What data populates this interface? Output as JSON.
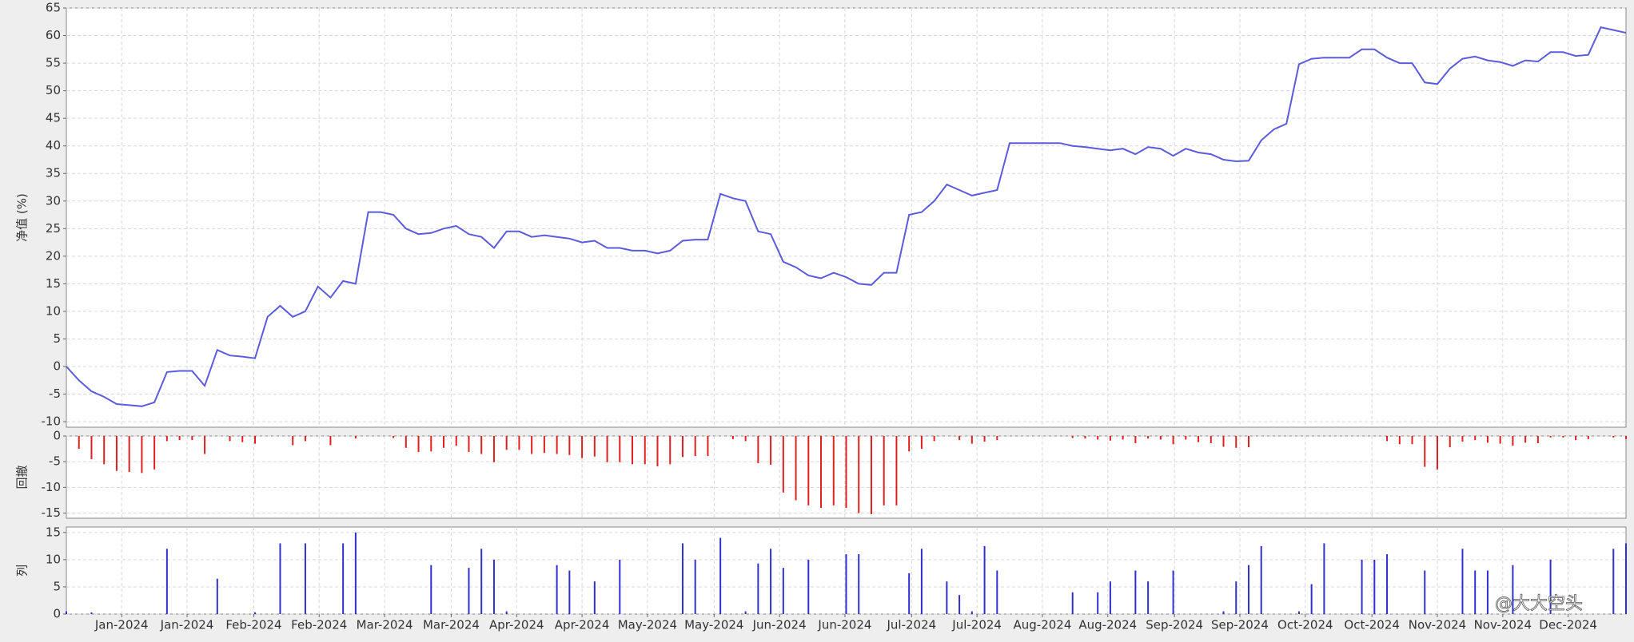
{
  "chart_data": [
    {
      "type": "line",
      "ylabel": "净值 (%)",
      "color": "#5b5bdc",
      "xlim": [
        0,
        124
      ],
      "ylim": [
        -11,
        65
      ],
      "yticks": [
        -10,
        -5,
        0,
        5,
        10,
        15,
        20,
        25,
        30,
        35,
        40,
        45,
        50,
        55,
        60,
        65
      ],
      "grid": true,
      "values": [
        0,
        -2.5,
        -4.5,
        -5.5,
        -6.8,
        -7,
        -7.2,
        -6.5,
        -1,
        -0.8,
        -0.8,
        -3.5,
        3,
        2,
        1.8,
        1.5,
        9,
        11,
        9,
        10,
        14.5,
        12.5,
        15.5,
        15,
        28,
        28,
        27.5,
        25,
        24,
        24.2,
        25,
        25.5,
        24,
        23.5,
        21.5,
        24.5,
        24.5,
        23.5,
        23.8,
        23.5,
        23.2,
        22.5,
        22.8,
        21.5,
        21.5,
        21,
        21,
        20.5,
        21,
        22.8,
        23,
        23,
        31.3,
        30.5,
        30,
        24.5,
        24,
        19,
        18,
        16.5,
        16,
        17,
        16.2,
        15,
        14.8,
        17,
        17,
        27.5,
        28,
        30,
        33,
        32,
        31,
        31.5,
        32,
        40.5,
        40.5,
        40.5,
        40.5,
        40.5,
        40,
        39.8,
        39.5,
        39.2,
        39.5,
        38.5,
        39.8,
        39.5,
        38.2,
        39.5,
        38.8,
        38.5,
        37.5,
        37.2,
        37.3,
        41,
        43,
        44,
        54.8,
        55.8,
        56,
        56,
        56,
        57.5,
        57.5,
        56,
        55,
        55,
        51.5,
        51.2,
        54,
        55.8,
        56.2,
        55.5,
        55.2,
        54.5,
        55.5,
        55.3,
        57,
        57,
        56.3,
        56.5,
        61.5,
        61,
        60.5
      ]
    },
    {
      "type": "bar",
      "ylabel": "回撤",
      "color": "#e02020",
      "xlim": [
        0,
        124
      ],
      "ylim": [
        -16,
        0
      ],
      "yticks": [
        0,
        -5,
        -10,
        -15
      ],
      "grid": true,
      "values": [
        0,
        -2.5,
        -4.5,
        -5.5,
        -6.8,
        -7,
        -7.2,
        -6.5,
        -1,
        -0.8,
        -0.8,
        -3.5,
        0,
        -1,
        -1.2,
        -1.5,
        0,
        0,
        -1.8,
        -1,
        0,
        -1.8,
        0,
        -0.5,
        0,
        0,
        -0.4,
        -2.3,
        -3.1,
        -3,
        -2.3,
        -1.9,
        -3.1,
        -3.5,
        -5.1,
        -2.7,
        -2.7,
        -3.5,
        -3.3,
        -3.5,
        -3.7,
        -4.3,
        -4,
        -5.1,
        -5.1,
        -5.5,
        -5.5,
        -5.9,
        -5.5,
        -4.1,
        -3.9,
        -3.9,
        0,
        -0.6,
        -1,
        -5.3,
        -5.6,
        -11,
        -12.5,
        -13.5,
        -14,
        -13.5,
        -14,
        -15,
        -15.2,
        -13.5,
        -13.5,
        -3,
        -2.5,
        -1,
        0,
        -0.8,
        -1.5,
        -1.1,
        -0.8,
        0,
        0,
        0,
        0,
        0,
        -0.4,
        -0.5,
        -0.7,
        -0.9,
        -0.7,
        -1.4,
        -0.5,
        -0.7,
        -1.6,
        -0.7,
        -1.2,
        -1.4,
        -2.1,
        -2.3,
        -2.2,
        0,
        0,
        0,
        0,
        0,
        0,
        0,
        0,
        0,
        0,
        -1,
        -1.6,
        -1.6,
        -6,
        -6.5,
        -2.2,
        -1.1,
        -0.8,
        -1.3,
        -1.5,
        -1.9,
        -1.3,
        -1.4,
        -0.3,
        -0.3,
        -0.8,
        -0.6,
        0,
        -0.3,
        -0.6
      ]
    },
    {
      "type": "bar",
      "ylabel": "列",
      "color": "#3030d0",
      "xlim": [
        0,
        124
      ],
      "ylim": [
        0,
        16
      ],
      "yticks": [
        0,
        5,
        10,
        15
      ],
      "grid": true,
      "values": [
        0.5,
        0,
        0.3,
        0,
        0,
        0,
        0,
        0,
        12,
        0,
        0,
        0,
        6.5,
        0,
        0,
        0.3,
        0,
        13,
        0,
        13,
        0,
        0,
        13,
        15,
        0,
        0,
        0,
        0,
        0,
        9,
        0,
        0,
        8.5,
        12,
        10,
        0.5,
        0,
        0,
        0,
        9,
        8,
        0,
        6,
        0,
        10,
        0,
        0,
        0,
        0,
        13,
        10,
        0,
        14,
        0,
        0.5,
        9.3,
        12,
        8.5,
        0,
        10,
        0,
        0,
        11,
        11,
        0,
        0,
        0,
        7.5,
        12,
        0,
        6,
        3.5,
        0.5,
        12.5,
        8,
        0,
        0,
        0,
        0,
        0,
        4,
        0,
        4,
        6,
        0,
        8,
        6,
        0,
        8,
        0,
        0,
        0,
        0.5,
        6,
        9,
        12.5,
        0,
        0,
        0.5,
        5.5,
        13,
        0,
        0,
        10,
        10,
        11,
        0,
        0,
        8,
        0,
        0,
        12,
        8,
        8,
        0,
        9,
        0,
        0,
        10,
        0,
        0,
        0,
        0,
        12,
        13
      ],
      "xticks": [
        {
          "value": 4.4,
          "label": "Jan-2024"
        },
        {
          "value": 9.6,
          "label": "Jan-2024"
        },
        {
          "value": 14.9,
          "label": "Feb-2024"
        },
        {
          "value": 20.1,
          "label": "Feb-2024"
        },
        {
          "value": 25.3,
          "label": "Mar-2024"
        },
        {
          "value": 30.6,
          "label": "Mar-2024"
        },
        {
          "value": 35.8,
          "label": "Apr-2024"
        },
        {
          "value": 41,
          "label": "Apr-2024"
        },
        {
          "value": 46.2,
          "label": "May-2024"
        },
        {
          "value": 51.5,
          "label": "May-2024"
        },
        {
          "value": 56.7,
          "label": "Jun-2024"
        },
        {
          "value": 61.9,
          "label": "Jun-2024"
        },
        {
          "value": 67.2,
          "label": "Jul-2024"
        },
        {
          "value": 72.4,
          "label": "Jul-2024"
        },
        {
          "value": 77.6,
          "label": "Aug-2024"
        },
        {
          "value": 82.8,
          "label": "Aug-2024"
        },
        {
          "value": 88.1,
          "label": "Sep-2024"
        },
        {
          "value": 93.3,
          "label": "Sep-2024"
        },
        {
          "value": 98.5,
          "label": "Oct-2024"
        },
        {
          "value": 103.8,
          "label": "Oct-2024"
        },
        {
          "value": 109,
          "label": "Nov-2024"
        },
        {
          "value": 114.2,
          "label": "Nov-2024"
        },
        {
          "value": 119.4,
          "label": "Dec-2024"
        }
      ]
    }
  ],
  "watermark": "@大大空头"
}
